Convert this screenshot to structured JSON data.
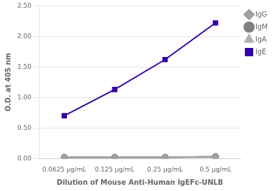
{
  "chart_data": {
    "type": "line",
    "categories": [
      "0.0625 μg/mL",
      "0.125 μg/mL",
      "0.25 μg/mL",
      "0.5 μg/mL"
    ],
    "series": [
      {
        "name": "IgG",
        "color": "#a0a0a0",
        "marker": "diamond",
        "values": [
          0.02,
          0.02,
          0.02,
          0.03
        ]
      },
      {
        "name": "IgM",
        "color": "#808080",
        "marker": "circle",
        "values": [
          0.02,
          0.02,
          0.02,
          0.03
        ]
      },
      {
        "name": "IgA",
        "color": "#b0b0b0",
        "marker": "triangle",
        "values": [
          0.02,
          0.02,
          0.02,
          0.02
        ]
      },
      {
        "name": "IgE",
        "color": "#3300aa",
        "marker": "square",
        "values": [
          0.7,
          1.13,
          1.62,
          2.22
        ]
      }
    ],
    "x_label": "Dilution of Mouse Anti-Human IgEFc-UNLB",
    "y_label": "O.D. at 405 nm",
    "ylim": [
      0,
      2.5
    ],
    "yticks": [
      {
        "value": 0,
        "label": "0.00"
      },
      {
        "value": 0.5,
        "label": "0.50"
      },
      {
        "value": 1,
        "label": "1.00"
      },
      {
        "value": 1.5,
        "label": "1.50"
      },
      {
        "value": 2,
        "label": "2.00"
      },
      {
        "value": 2.5,
        "label": "2.50"
      }
    ],
    "grid": "y",
    "legend": "right"
  }
}
